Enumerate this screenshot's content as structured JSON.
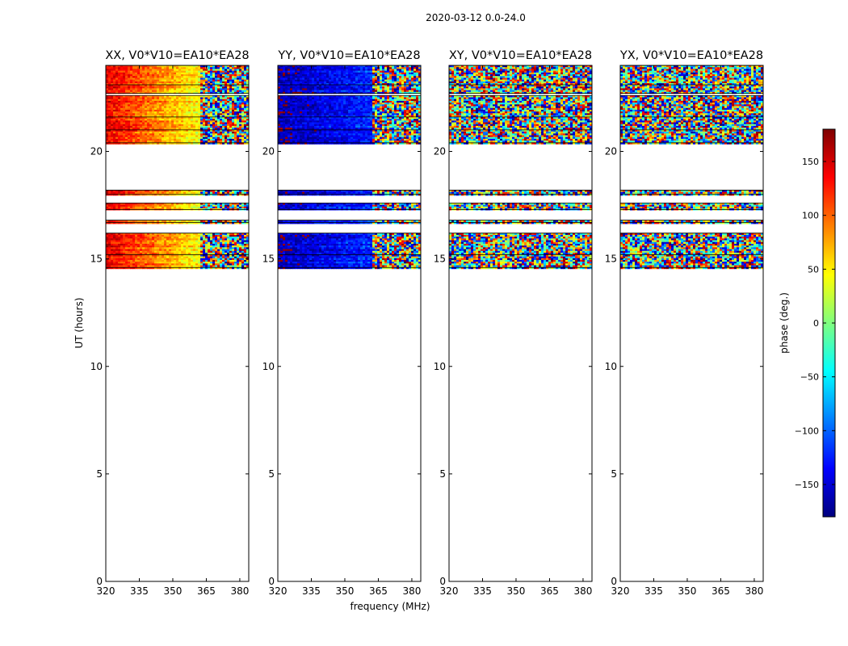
{
  "figure": {
    "suptitle": "2020-03-12 0.0-24.0",
    "xlabel": "frequency (MHz)",
    "ylabel": "UT (hours)"
  },
  "colorbar": {
    "label": "phase (deg.)",
    "range": [
      -180,
      180
    ],
    "ticks": [
      150,
      100,
      50,
      0,
      -50,
      -100,
      -150
    ],
    "tick_labels": [
      "150",
      "100",
      "50",
      "0",
      "−50",
      "−100",
      "−150"
    ],
    "colormap": [
      "#00007f",
      "#0000ff",
      "#007fff",
      "#00ffff",
      "#7fff7f",
      "#ffff00",
      "#ff7f00",
      "#ff0000",
      "#7f0000"
    ]
  },
  "chart_data": {
    "type": "heatmap",
    "quantity": "phase (deg.)",
    "xlim": [
      320,
      384
    ],
    "ylim": [
      0,
      24
    ],
    "x_ticks": [
      320,
      335,
      350,
      365,
      380
    ],
    "x_tick_labels": [
      "320",
      "335",
      "350",
      "365",
      "380"
    ],
    "y_ticks": [
      0,
      5,
      10,
      15,
      20
    ],
    "y_tick_labels": [
      "0",
      "5",
      "10",
      "15",
      "20"
    ],
    "data_bands_hours": [
      [
        14.6,
        15.2
      ],
      [
        15.2,
        16.2
      ],
      [
        16.7,
        16.8
      ],
      [
        17.3,
        17.6
      ],
      [
        18.0,
        18.2
      ],
      [
        20.4,
        21.0
      ],
      [
        21.0,
        21.6
      ],
      [
        21.6,
        22.6
      ],
      [
        22.7,
        23.1
      ],
      [
        23.1,
        24.0
      ]
    ],
    "panels": [
      {
        "title": "XX, V0*V10=EA10*EA28",
        "pattern": "smooth",
        "low_freq_phase": 140,
        "high_freq_phase": 40,
        "coherent_below_mhz": 362
      },
      {
        "title": "YY, V0*V10=EA10*EA28",
        "pattern": "smooth",
        "low_freq_phase": -160,
        "high_freq_phase": -120,
        "coherent_below_mhz": 362
      },
      {
        "title": "XY, V0*V10=EA10*EA28",
        "pattern": "noise",
        "low_freq_phase": 0,
        "high_freq_phase": 0,
        "coherent_below_mhz": 320
      },
      {
        "title": "YX, V0*V10=EA10*EA28",
        "pattern": "noise",
        "low_freq_phase": 0,
        "high_freq_phase": 0,
        "coherent_below_mhz": 320
      }
    ]
  }
}
